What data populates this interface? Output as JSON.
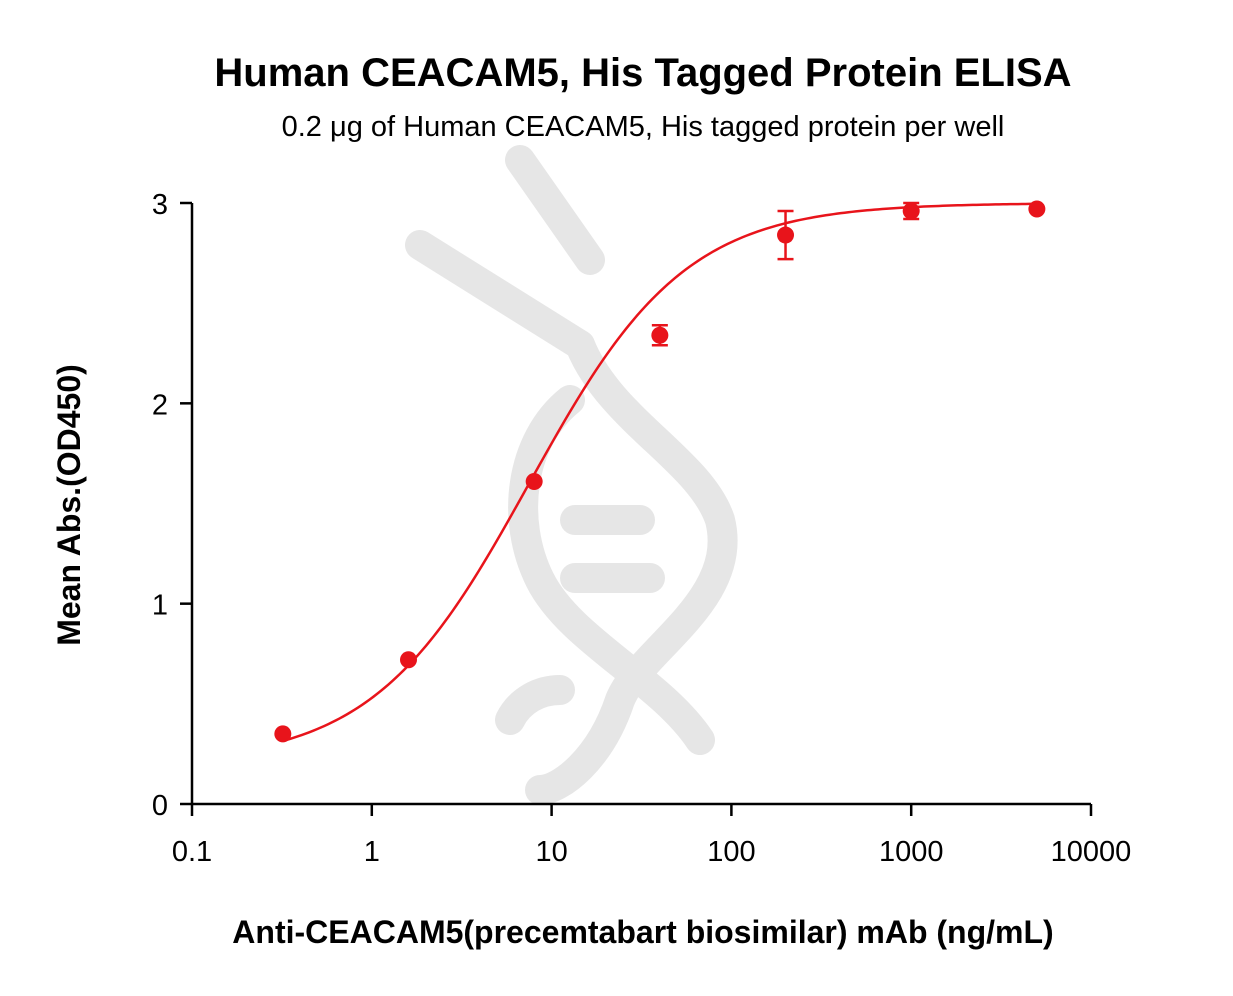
{
  "chart_data": {
    "type": "scatter",
    "title": "Human CEACAM5, His Tagged Protein ELISA",
    "subtitle": "0.2 μg of Human CEACAM5, His tagged protein per well",
    "xlabel": "Anti-CEACAM5(precemtabart biosimilar) mAb (ng/mL)",
    "ylabel": "Mean Abs.(OD450)",
    "xscale": "log",
    "xlim": [
      0.1,
      10000
    ],
    "ylim": [
      0,
      3
    ],
    "x_ticks": [
      "0.1",
      "1",
      "10",
      "100",
      "1000",
      "10000"
    ],
    "y_ticks": [
      "0",
      "1",
      "2",
      "3"
    ],
    "grid": false,
    "series": [
      {
        "color": "#e8141b",
        "points": [
          {
            "x": 0.32,
            "y": 0.35,
            "err": 0.0
          },
          {
            "x": 1.6,
            "y": 0.72,
            "err": 0.0
          },
          {
            "x": 8,
            "y": 1.61,
            "err": 0.0
          },
          {
            "x": 40,
            "y": 2.34,
            "err": 0.05
          },
          {
            "x": 200,
            "y": 2.84,
            "err": 0.12
          },
          {
            "x": 1000,
            "y": 2.96,
            "err": 0.04
          },
          {
            "x": 5000,
            "y": 2.97,
            "err": 0.0
          }
        ],
        "fit": {
          "model": "4PL",
          "bottom": 0.2,
          "top": 3.0,
          "ec50": 7.5,
          "hill": 1.0
        }
      }
    ]
  }
}
